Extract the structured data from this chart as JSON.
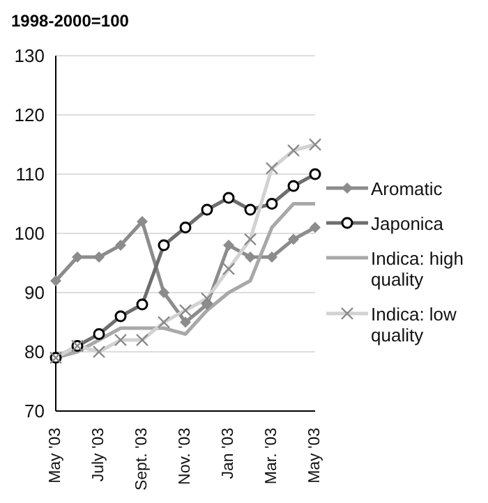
{
  "chart_data": {
    "type": "line",
    "title": "1998-2000=100",
    "categories": [
      "May '03",
      null,
      "July '03",
      null,
      "Sept. '03",
      null,
      "Nov. '03",
      null,
      "Jan '03",
      null,
      "Mar. '03",
      null,
      "May '03"
    ],
    "series": [
      {
        "name": "Aromatic",
        "color": "#8c8c8c",
        "marker": "diamond",
        "values": [
          92,
          96,
          96,
          98,
          102,
          90,
          85,
          88,
          98,
          96,
          96,
          99,
          101
        ]
      },
      {
        "name": "Japonica",
        "color": "#6e6e6e",
        "marker": "circle",
        "values": [
          79,
          81,
          83,
          86,
          88,
          98,
          101,
          104,
          106,
          104,
          105,
          108,
          110
        ]
      },
      {
        "name": "Indica: high quality",
        "color": "#a8a8a8",
        "marker": "none",
        "values": [
          79,
          80,
          82,
          84,
          84,
          84,
          83,
          87,
          90,
          92,
          101,
          105,
          105
        ]
      },
      {
        "name": "Indica: low quality",
        "color": "#d2d2d2",
        "marker": "cross",
        "values": [
          79,
          81,
          80,
          82,
          82,
          85,
          87,
          89,
          94,
          99,
          111,
          114,
          115
        ]
      }
    ],
    "ylim": [
      70,
      130
    ],
    "yticks": [
      70,
      80,
      90,
      100,
      110,
      120,
      130
    ],
    "grid": "y",
    "legend": "right"
  }
}
